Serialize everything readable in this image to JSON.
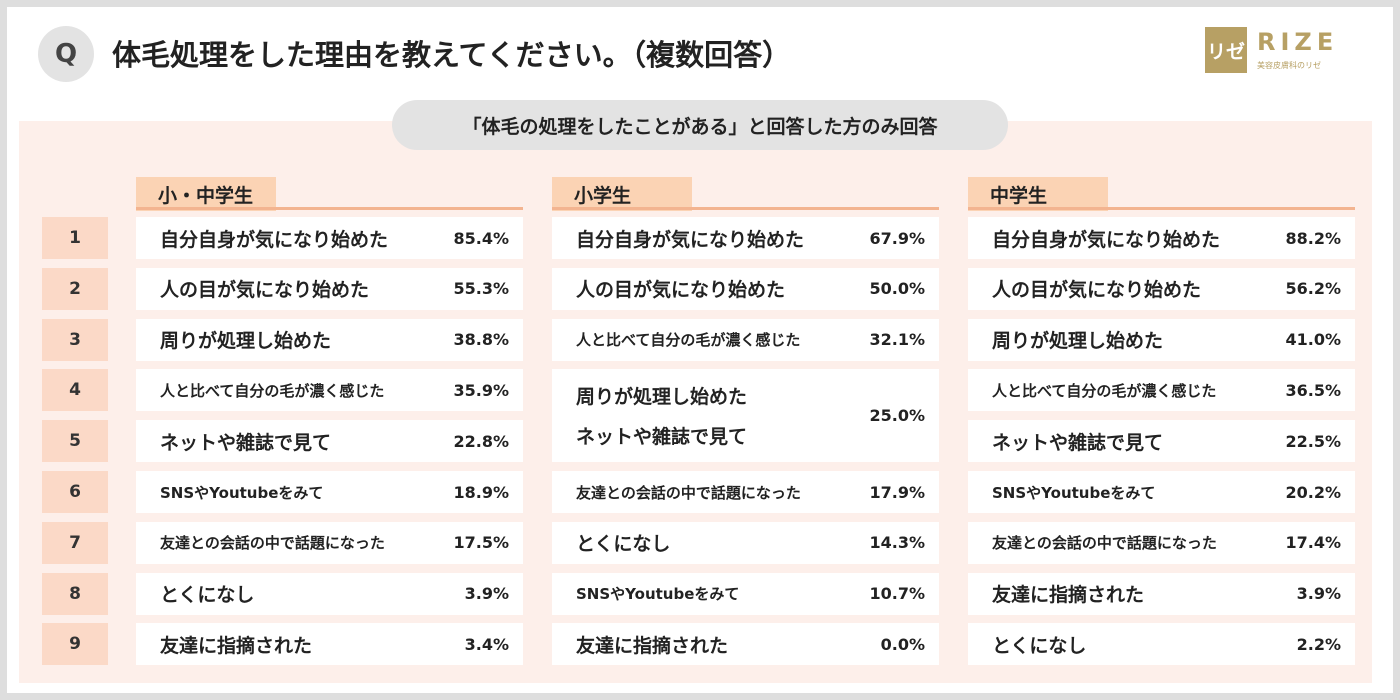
{
  "header": {
    "q_badge": "Q",
    "title": "体毛処理をした理由を教えてください。（複数回答）",
    "note": "「体毛の処理をしたことがある」と回答した方のみ回答"
  },
  "logo": {
    "mark": "リゼ",
    "word": "RIZE",
    "sub": "美容皮膚科のリゼ",
    "color": "#b7a064"
  },
  "colors": {
    "panel": "#fdefea",
    "rank_cell": "#fbd9c7",
    "tab": "#fbd3b4",
    "tab_line": "#f3b490",
    "badge": "#e3e3e3"
  },
  "ranks": [
    "1",
    "2",
    "3",
    "4",
    "5",
    "6",
    "7",
    "8",
    "9"
  ],
  "chart_data": {
    "type": "table",
    "columns": [
      {
        "header": "小・中学生",
        "rows": [
          {
            "rank": "1",
            "labels": [
              "自分自身が気になり始めた"
            ],
            "value": "85.4%"
          },
          {
            "rank": "2",
            "labels": [
              "人の目が気になり始めた"
            ],
            "value": "55.3%"
          },
          {
            "rank": "3",
            "labels": [
              "周りが処理し始めた"
            ],
            "value": "38.8%"
          },
          {
            "rank": "4",
            "labels": [
              "人と比べて自分の毛が濃く感じた"
            ],
            "value": "35.9%"
          },
          {
            "rank": "5",
            "labels": [
              "ネットや雑誌で見て"
            ],
            "value": "22.8%"
          },
          {
            "rank": "6",
            "labels": [
              "SNSやYoutubeをみて"
            ],
            "value": "18.9%"
          },
          {
            "rank": "7",
            "labels": [
              "友達との会話の中で話題になった"
            ],
            "value": "17.5%"
          },
          {
            "rank": "8",
            "labels": [
              "とくになし"
            ],
            "value": "3.9%"
          },
          {
            "rank": "9",
            "labels": [
              "友達に指摘された"
            ],
            "value": "3.4%"
          }
        ]
      },
      {
        "header": "小学生",
        "rows": [
          {
            "rank": "1",
            "labels": [
              "自分自身が気になり始めた"
            ],
            "value": "67.9%"
          },
          {
            "rank": "2",
            "labels": [
              "人の目が気になり始めた"
            ],
            "value": "50.0%"
          },
          {
            "rank": "3",
            "labels": [
              "人と比べて自分の毛が濃く感じた"
            ],
            "value": "32.1%"
          },
          {
            "rank": "4-5",
            "labels": [
              "周りが処理し始めた",
              "ネットや雑誌で見て"
            ],
            "value": "25.0%"
          },
          {
            "rank": "6",
            "labels": [
              "友達との会話の中で話題になった"
            ],
            "value": "17.9%"
          },
          {
            "rank": "7",
            "labels": [
              "とくになし"
            ],
            "value": "14.3%"
          },
          {
            "rank": "8",
            "labels": [
              "SNSやYoutubeをみて"
            ],
            "value": "10.7%"
          },
          {
            "rank": "9",
            "labels": [
              "友達に指摘された"
            ],
            "value": "0.0%"
          }
        ]
      },
      {
        "header": "中学生",
        "rows": [
          {
            "rank": "1",
            "labels": [
              "自分自身が気になり始めた"
            ],
            "value": "88.2%"
          },
          {
            "rank": "2",
            "labels": [
              "人の目が気になり始めた"
            ],
            "value": "56.2%"
          },
          {
            "rank": "3",
            "labels": [
              "周りが処理し始めた"
            ],
            "value": "41.0%"
          },
          {
            "rank": "4",
            "labels": [
              "人と比べて自分の毛が濃く感じた"
            ],
            "value": "36.5%"
          },
          {
            "rank": "5",
            "labels": [
              "ネットや雑誌で見て"
            ],
            "value": "22.5%"
          },
          {
            "rank": "6",
            "labels": [
              "SNSやYoutubeをみて"
            ],
            "value": "20.2%"
          },
          {
            "rank": "7",
            "labels": [
              "友達との会話の中で話題になった"
            ],
            "value": "17.4%"
          },
          {
            "rank": "8",
            "labels": [
              "友達に指摘された"
            ],
            "value": "3.9%"
          },
          {
            "rank": "9",
            "labels": [
              "とくになし"
            ],
            "value": "2.2%"
          }
        ]
      }
    ]
  }
}
